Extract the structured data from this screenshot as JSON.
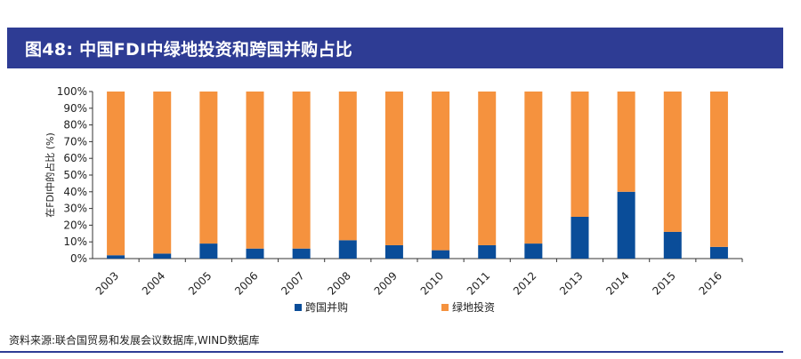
{
  "header": {
    "title": "图48: 中国FDI中绿地投资和跨国并购占比"
  },
  "chart_data": {
    "type": "bar",
    "stacked": true,
    "categories": [
      "2003",
      "2004",
      "2005",
      "2006",
      "2007",
      "2008",
      "2009",
      "2010",
      "2011",
      "2012",
      "2013",
      "2014",
      "2015",
      "2016"
    ],
    "series": [
      {
        "name": "跨国并购",
        "color": "#0a4d99",
        "values": [
          2,
          3,
          9,
          6,
          6,
          11,
          8,
          5,
          8,
          9,
          25,
          40,
          16,
          7
        ]
      },
      {
        "name": "绿地投资",
        "color": "#f5923e",
        "values": [
          98,
          97,
          91,
          94,
          94,
          89,
          92,
          95,
          92,
          91,
          75,
          60,
          84,
          93
        ]
      }
    ],
    "ylabel": "在FDI中的占比 (%)",
    "xlabel": "",
    "ylim": [
      0,
      100
    ],
    "yticks": [
      "0%",
      "10%",
      "20%",
      "30%",
      "40%",
      "50%",
      "60%",
      "70%",
      "80%",
      "90%",
      "100%"
    ],
    "legend_position": "bottom",
    "grid": false
  },
  "footer": {
    "source": "资料来源:联合国贸易和发展会议数据库,WIND数据库"
  }
}
